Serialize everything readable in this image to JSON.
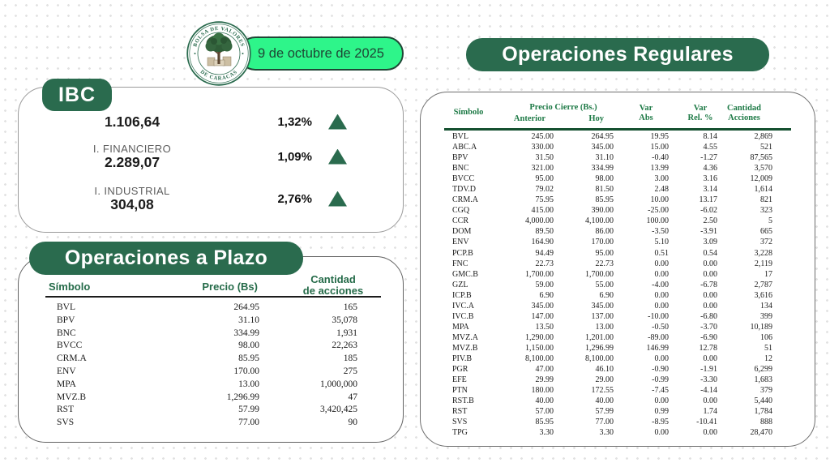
{
  "meta": {
    "date_label": "9 de octubre de 2025"
  },
  "logo": {
    "top_text": "BOLSA DE VALORES",
    "bottom_text": "DE CARACAS"
  },
  "colors": {
    "dark_green": "#2a6b4e",
    "bright_green": "#2ef58a",
    "header_green": "#1e7a46",
    "text_dark": "#1a1a1a"
  },
  "ibc": {
    "badge": "IBC",
    "rows": [
      {
        "label": "",
        "value": "1.106,64",
        "pct": "1,32%",
        "direction": "up"
      },
      {
        "label": "I. FINANCIERO",
        "value": "2.289,07",
        "pct": "1,09%",
        "direction": "up"
      },
      {
        "label": "I. INDUSTRIAL",
        "value": "304,08",
        "pct": "2,76%",
        "direction": "up"
      }
    ]
  },
  "plazo": {
    "title": "Operaciones a Plazo",
    "header": {
      "simbolo": "Símbolo",
      "precio": "Precio (Bs)",
      "cantidad": "Cantidad\nde acciones"
    },
    "rows": [
      [
        "BVL",
        "264.95",
        "165"
      ],
      [
        "BPV",
        "31.10",
        "35,078"
      ],
      [
        "BNC",
        "334.99",
        "1,931"
      ],
      [
        "BVCC",
        "98.00",
        "22,263"
      ],
      [
        "CRM.A",
        "85.95",
        "185"
      ],
      [
        "ENV",
        "170.00",
        "275"
      ],
      [
        "MPA",
        "13.00",
        "1,000,000"
      ],
      [
        "MVZ.B",
        "1,296.99",
        "47"
      ],
      [
        "RST",
        "57.99",
        "3,420,425"
      ],
      [
        "SVS",
        "77.00",
        "90"
      ]
    ]
  },
  "regulares": {
    "title": "Operaciones Regulares",
    "header": {
      "simbolo": "Símbolo",
      "precio_cierre": "Precio Cierre (Bs.)",
      "anterior": "Anterior",
      "hoy": "Hoy",
      "var_abs": "Var\nAbs",
      "var_rel": "Var\nRel. %",
      "cantidad": "Cantidad\nAcciones"
    },
    "rows": [
      [
        "BVL",
        "245.00",
        "264.95",
        "19.95",
        "8.14",
        "2,869"
      ],
      [
        "ABC.A",
        "330.00",
        "345.00",
        "15.00",
        "4.55",
        "521"
      ],
      [
        "BPV",
        "31.50",
        "31.10",
        "-0.40",
        "-1.27",
        "87,565"
      ],
      [
        "BNC",
        "321.00",
        "334.99",
        "13.99",
        "4.36",
        "3,570"
      ],
      [
        "BVCC",
        "95.00",
        "98.00",
        "3.00",
        "3.16",
        "12,009"
      ],
      [
        "TDV.D",
        "79.02",
        "81.50",
        "2.48",
        "3.14",
        "1,614"
      ],
      [
        "CRM.A",
        "75.95",
        "85.95",
        "10.00",
        "13.17",
        "821"
      ],
      [
        "CGQ",
        "415.00",
        "390.00",
        "-25.00",
        "-6.02",
        "323"
      ],
      [
        "CCR",
        "4,000.00",
        "4,100.00",
        "100.00",
        "2.50",
        "5"
      ],
      [
        "DOM",
        "89.50",
        "86.00",
        "-3.50",
        "-3.91",
        "665"
      ],
      [
        "ENV",
        "164.90",
        "170.00",
        "5.10",
        "3.09",
        "372"
      ],
      [
        "PCP.B",
        "94.49",
        "95.00",
        "0.51",
        "0.54",
        "3,228"
      ],
      [
        "FNC",
        "22.73",
        "22.73",
        "0.00",
        "0.00",
        "2,119"
      ],
      [
        "GMC.B",
        "1,700.00",
        "1,700.00",
        "0.00",
        "0.00",
        "17"
      ],
      [
        "GZL",
        "59.00",
        "55.00",
        "-4.00",
        "-6.78",
        "2,787"
      ],
      [
        "ICP.B",
        "6.90",
        "6.90",
        "0.00",
        "0.00",
        "3,616"
      ],
      [
        "IVC.A",
        "345.00",
        "345.00",
        "0.00",
        "0.00",
        "134"
      ],
      [
        "IVC.B",
        "147.00",
        "137.00",
        "-10.00",
        "-6.80",
        "399"
      ],
      [
        "MPA",
        "13.50",
        "13.00",
        "-0.50",
        "-3.70",
        "10,189"
      ],
      [
        "MVZ.A",
        "1,290.00",
        "1,201.00",
        "-89.00",
        "-6.90",
        "106"
      ],
      [
        "MVZ.B",
        "1,150.00",
        "1,296.99",
        "146.99",
        "12.78",
        "51"
      ],
      [
        "PIV.B",
        "8,100.00",
        "8,100.00",
        "0.00",
        "0.00",
        "12"
      ],
      [
        "PGR",
        "47.00",
        "46.10",
        "-0.90",
        "-1.91",
        "6,299"
      ],
      [
        "EFE",
        "29.99",
        "29.00",
        "-0.99",
        "-3.30",
        "1,683"
      ],
      [
        "PTN",
        "180.00",
        "172.55",
        "-7.45",
        "-4.14",
        "379"
      ],
      [
        "RST.B",
        "40.00",
        "40.00",
        "0.00",
        "0.00",
        "5,440"
      ],
      [
        "RST",
        "57.00",
        "57.99",
        "0.99",
        "1.74",
        "1,784"
      ],
      [
        "SVS",
        "85.95",
        "77.00",
        "-8.95",
        "-10.41",
        "888"
      ],
      [
        "TPG",
        "3.30",
        "3.30",
        "0.00",
        "0.00",
        "28,470"
      ]
    ]
  }
}
